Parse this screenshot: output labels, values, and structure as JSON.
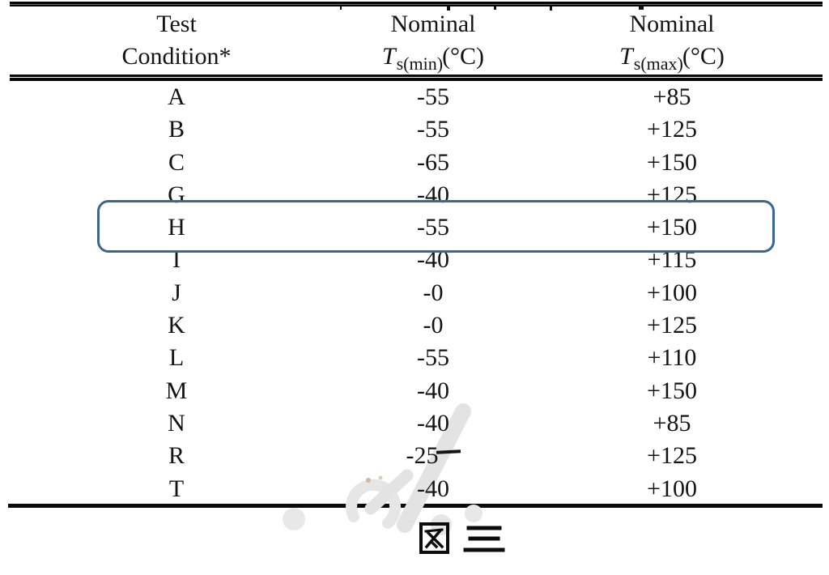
{
  "table": {
    "columns": [
      {
        "line1": "Test",
        "line2": "Condition*"
      },
      {
        "line1": "Nominal",
        "symbol": "T",
        "sub": "s(min)",
        "unit": "(°C)"
      },
      {
        "line1": "Nominal",
        "symbol": "T",
        "sub": "s(max)",
        "unit": "(°C)"
      }
    ],
    "rows": [
      {
        "condition": "A",
        "tmin": "-55",
        "tmax": "+85"
      },
      {
        "condition": "B",
        "tmin": "-55",
        "tmax": "+125"
      },
      {
        "condition": "C",
        "tmin": "-65",
        "tmax": "+150"
      },
      {
        "condition": "G",
        "tmin": "-40",
        "tmax": "+125"
      },
      {
        "condition": "H",
        "tmin": "-55",
        "tmax": "+150"
      },
      {
        "condition": "I",
        "tmin": "-40",
        "tmax": "+115"
      },
      {
        "condition": "J",
        "tmin": "-0",
        "tmax": "+100"
      },
      {
        "condition": "K",
        "tmin": "-0",
        "tmax": "+125"
      },
      {
        "condition": "L",
        "tmin": "-55",
        "tmax": "+110"
      },
      {
        "condition": "M",
        "tmin": "-40",
        "tmax": "+150"
      },
      {
        "condition": "N",
        "tmin": "-40",
        "tmax": "+85"
      },
      {
        "condition": "R",
        "tmin": "-25",
        "tmax": "+125",
        "overbar": true
      },
      {
        "condition": "T",
        "tmin": "-40",
        "tmax": "+100"
      }
    ]
  },
  "highlight": {
    "row": "H",
    "color": "#3b6595"
  },
  "caption": {
    "text": "图 三"
  }
}
